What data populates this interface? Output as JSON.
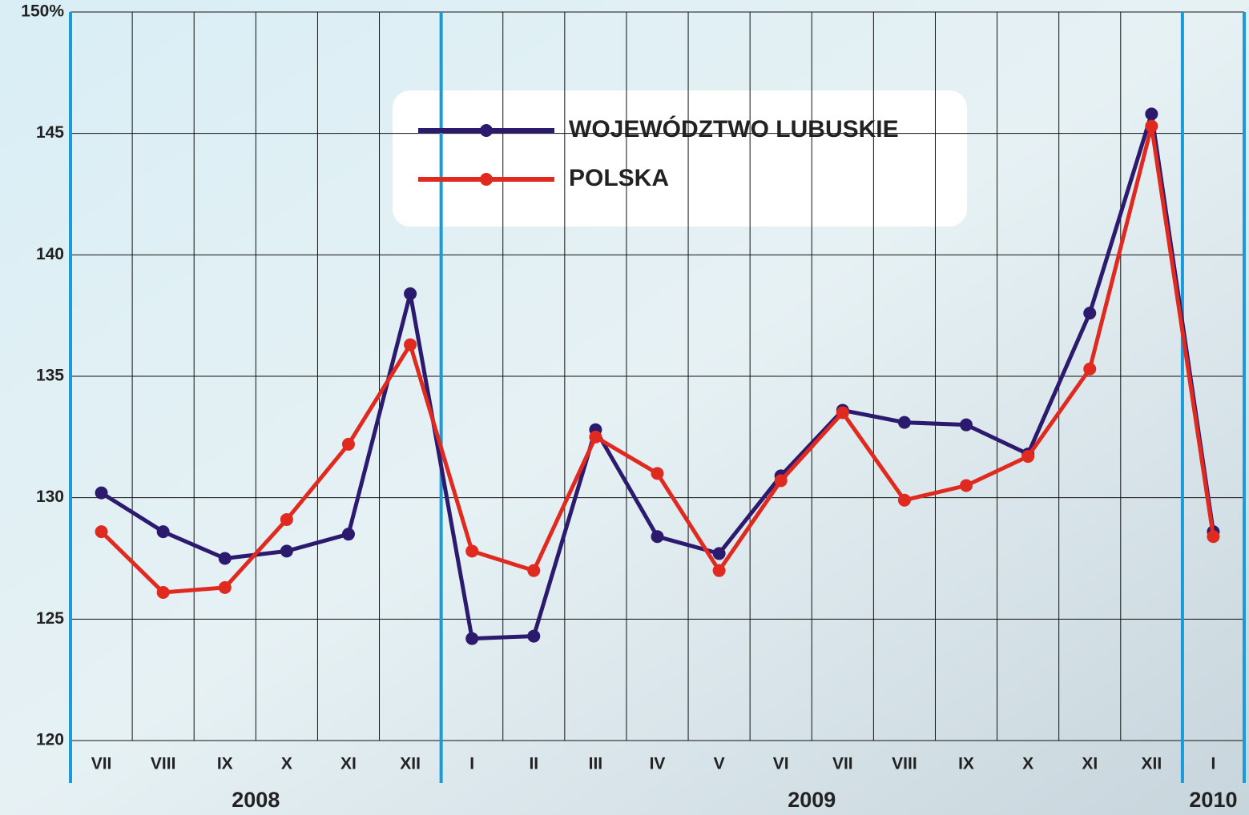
{
  "chart_data": {
    "type": "line",
    "categories": [
      "VII",
      "VIII",
      "IX",
      "X",
      "XI",
      "XII",
      "I",
      "II",
      "III",
      "IV",
      "V",
      "VI",
      "VII",
      "VIII",
      "IX",
      "X",
      "XI",
      "XII",
      "I"
    ],
    "year_groups": [
      {
        "label": "2008",
        "count": 6
      },
      {
        "label": "2009",
        "count": 12
      },
      {
        "label": "2010",
        "count": 1
      }
    ],
    "series": [
      {
        "name": "WOJEWÓDZTWO LUBUSKIE",
        "color": "#2b1a6e",
        "values": [
          130.2,
          128.6,
          127.5,
          127.8,
          128.5,
          138.4,
          124.2,
          124.3,
          132.8,
          128.4,
          127.7,
          130.9,
          133.6,
          133.1,
          133.0,
          131.8,
          137.6,
          145.8,
          128.6
        ]
      },
      {
        "name": "POLSKA",
        "color": "#e02a20",
        "values": [
          128.6,
          126.1,
          126.3,
          129.1,
          132.2,
          136.3,
          127.8,
          127.0,
          132.5,
          131.0,
          127.0,
          130.7,
          133.5,
          129.9,
          130.5,
          131.7,
          135.3,
          145.3,
          128.4
        ]
      }
    ],
    "ylim": [
      120,
      150
    ],
    "yticks": [
      120,
      125,
      130,
      135,
      140,
      145,
      {
        "value": 150,
        "label": "150%"
      }
    ],
    "grid": true
  }
}
